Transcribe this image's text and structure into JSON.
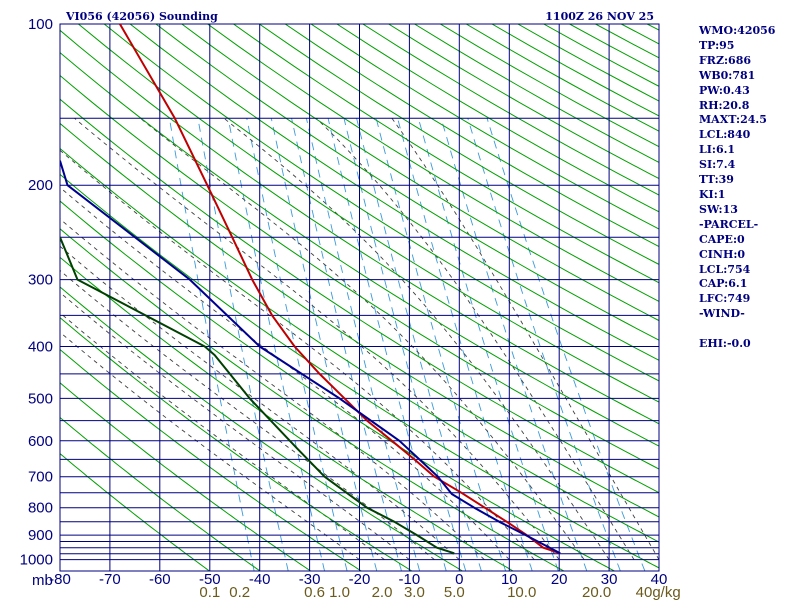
{
  "header": {
    "station_title": "VI056 (42056) Sounding",
    "datetime": "1100Z 26 NOV 25"
  },
  "stats": [
    "WMO:42056",
    "TP:95",
    "FRZ:686",
    "WB0:781",
    "PW:0.43",
    "RH:20.8",
    "MAXT:24.5",
    "LCL:840",
    "LI:6.1",
    "SI:7.4",
    "TT:39",
    "KI:1",
    "SW:13",
    "-PARCEL-",
    "CAPE:0",
    "CINH:0",
    "LCL:754",
    "CAP:6.1",
    "LFC:749",
    "-WIND-",
    "",
    "EHI:-0.0"
  ],
  "colors": {
    "grid": "#000080",
    "dry_adiabat": "#00a000",
    "moist_adiabat": "#404040",
    "mixing_ratio": "#3a9ad9",
    "temperature": "#c00000",
    "parcel": "#000090",
    "dewpoint": "#004000",
    "background": "#ffffff"
  },
  "chart_data": {
    "type": "line",
    "title": "VI056 (42056) Sounding",
    "subtitle": "1100Z 26 NOV 25",
    "xlabel": "",
    "ylabel": "mb",
    "pressure_axis": {
      "scale": "log",
      "range": [
        1000,
        100
      ],
      "labels": [
        100,
        200,
        300,
        400,
        500,
        600,
        700,
        800,
        900,
        1000
      ],
      "gridlines": [
        100,
        150,
        200,
        250,
        300,
        350,
        400,
        450,
        500,
        550,
        600,
        650,
        700,
        750,
        800,
        850,
        900,
        925,
        950,
        975,
        1000
      ]
    },
    "temperature_axis": {
      "range": [
        -80,
        40
      ],
      "ticks": [
        -80,
        -70,
        -60,
        -50,
        -40,
        -30,
        -20,
        -10,
        0,
        10,
        20,
        30,
        40
      ],
      "tick_labels": [
        "-80",
        "-70",
        "-60",
        "-50",
        "-40",
        "-30",
        "-20",
        "-10",
        "0",
        "10",
        "20",
        "30",
        "40"
      ],
      "skewed": false
    },
    "mixing_ratio_labels": [
      "0.1",
      "0.2",
      "0.6",
      "1.0",
      "2.0",
      "3.0",
      "5.0",
      "10.0",
      "20.0",
      "40",
      "g/kg"
    ],
    "mixing_ratio_label_temps": [
      -50,
      -44,
      -29,
      -24,
      -15.5,
      -9,
      -1,
      12.5,
      27.5,
      37,
      41.5
    ],
    "grid": true,
    "background_lines": [
      "dry_adiabats",
      "moist_adiabats",
      "mixing_ratio"
    ],
    "series": [
      {
        "key": "temperature",
        "pressure": [
          973,
          950,
          900,
          850,
          800,
          750,
          700,
          650,
          600,
          550,
          500,
          450,
          400,
          350,
          300,
          250,
          200,
          150,
          100
        ],
        "temperature": [
          20.2,
          16.8,
          13.5,
          9.5,
          5.1,
          0.4,
          -5.0,
          -9.0,
          -13.5,
          -18.5,
          -23.0,
          -28.0,
          -33.0,
          -37.5,
          -41.5,
          -45.5,
          -50.5,
          -57.0,
          -68.0
        ]
      },
      {
        "key": "parcel",
        "pressure": [
          973,
          900,
          850,
          800,
          754,
          700,
          650,
          600,
          500,
          400,
          300,
          200,
          180
        ],
        "temperature": [
          20.2,
          13.3,
          8.0,
          3.0,
          -1.5,
          -4.3,
          -8.0,
          -12.0,
          -24.0,
          -40.0,
          -54.0,
          -78.5,
          -80.0
        ]
      },
      {
        "key": "dewpoint",
        "pressure": [
          973,
          950,
          900,
          850,
          800,
          700,
          620,
          500,
          415,
          400,
          300,
          250
        ],
        "temperature": [
          -1.0,
          -4.5,
          -8.5,
          -13.0,
          -18.5,
          -27.0,
          -32.5,
          -42.0,
          -49.0,
          -51.0,
          -76.5,
          -80.0
        ]
      }
    ]
  }
}
